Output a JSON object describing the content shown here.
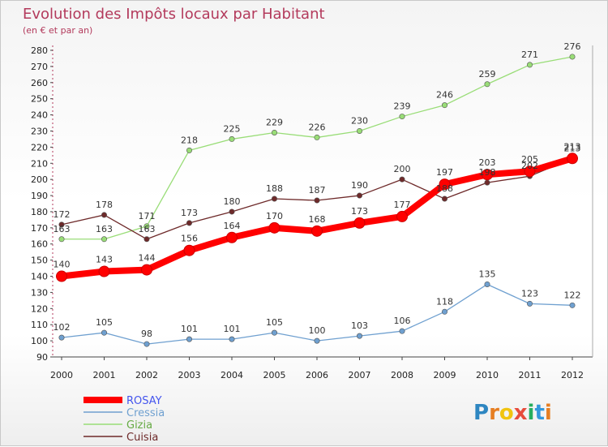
{
  "chart_data": {
    "type": "line",
    "title": "Evolution des Impôts locaux par Habitant",
    "subtitle": "(en € et par an)",
    "xlabel": "",
    "ylabel": "",
    "x": [
      "2000",
      "2001",
      "2002",
      "2003",
      "2004",
      "2005",
      "2006",
      "2007",
      "2008",
      "2009",
      "2010",
      "2011",
      "2012"
    ],
    "ylim": [
      90,
      280
    ],
    "yticks": [
      90,
      100,
      110,
      120,
      130,
      140,
      150,
      160,
      170,
      180,
      190,
      200,
      210,
      220,
      230,
      240,
      250,
      260,
      270,
      280
    ],
    "grid": false,
    "legend_position": "bottom-left",
    "series": [
      {
        "name": "ROSAY",
        "color": "#ff0000",
        "values": [
          140,
          143,
          144,
          156,
          164,
          170,
          168,
          173,
          177,
          197,
          203,
          205,
          213
        ]
      },
      {
        "name": "Cressia",
        "color": "#6fa0d0",
        "values": [
          102,
          105,
          98,
          101,
          101,
          105,
          100,
          103,
          106,
          118,
          135,
          123,
          122
        ]
      },
      {
        "name": "Gizia",
        "color": "#99dd77",
        "values": [
          163,
          163,
          171,
          218,
          225,
          229,
          226,
          230,
          239,
          246,
          259,
          271,
          276
        ]
      },
      {
        "name": "Cuisia",
        "color": "#6e2a2a",
        "values": [
          172,
          178,
          163,
          173,
          180,
          188,
          187,
          190,
          200,
          188,
          198,
          202,
          213
        ]
      }
    ]
  },
  "logo": {
    "text": "Proxiti",
    "letters": [
      "P",
      "r",
      "o",
      "x",
      "i",
      "t",
      "i"
    ]
  }
}
